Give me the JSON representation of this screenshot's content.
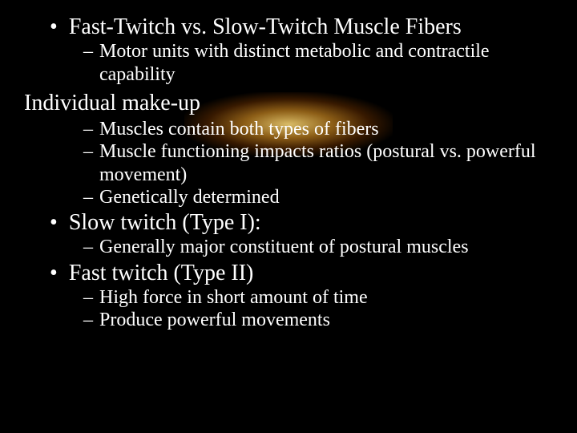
{
  "colors": {
    "background": "#000000",
    "text": "#ffffff",
    "glow_inner": "#ffdc78",
    "glow_mid": "#ffaa28",
    "glow_outer": "#dc6400"
  },
  "typography": {
    "font_family": "Times New Roman",
    "level1_fontsize_pt": 21,
    "level2_fontsize_pt": 18,
    "heading_fontsize_pt": 21
  },
  "slide": {
    "items": [
      {
        "type": "bullet-l1",
        "text": "Fast-Twitch vs. Slow-Twitch Muscle Fibers",
        "sub": [
          {
            "text": "Motor units with distinct metabolic and contractile capability"
          }
        ]
      },
      {
        "type": "heading",
        "text": "Individual make-up",
        "sub": [
          {
            "text": "Muscles contain both types of fibers"
          },
          {
            "text": "Muscle functioning impacts ratios (postural vs. powerful movement)"
          },
          {
            "text": "Genetically determined"
          }
        ]
      },
      {
        "type": "bullet-l1",
        "text": "Slow twitch (Type I):",
        "sub": [
          {
            "text": "Generally major constituent of postural muscles"
          }
        ]
      },
      {
        "type": "bullet-l1",
        "text": "Fast twitch (Type II)",
        "sub": [
          {
            "text": "High force in short amount of time"
          },
          {
            "text": "Produce powerful movements"
          }
        ]
      }
    ]
  }
}
